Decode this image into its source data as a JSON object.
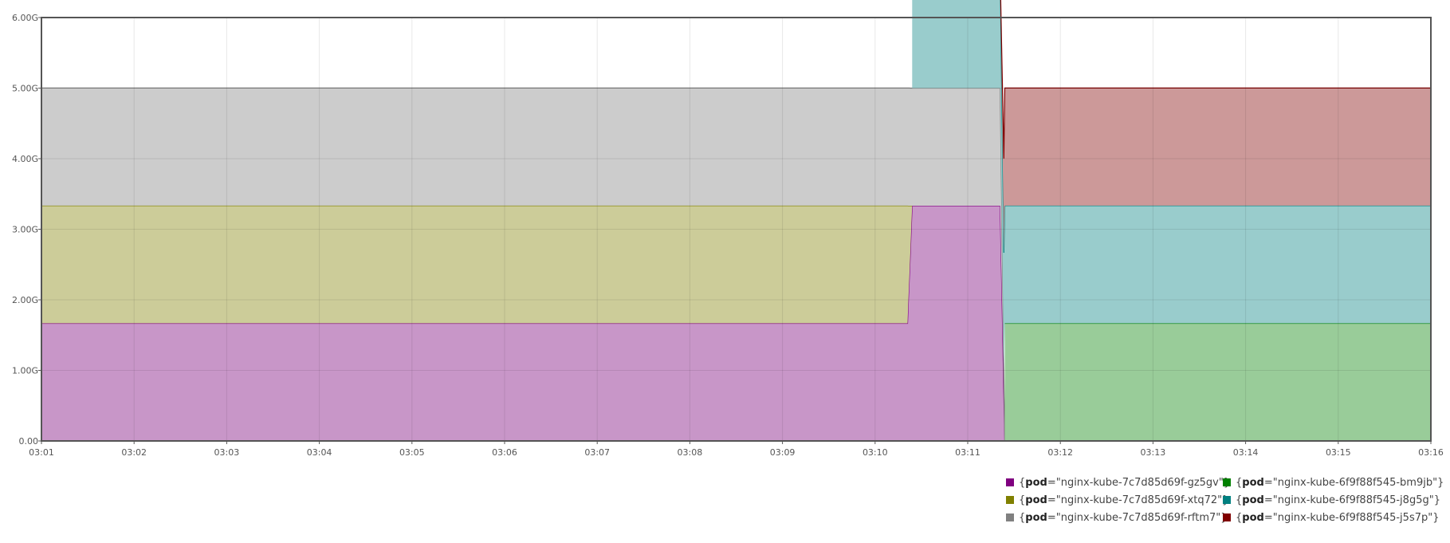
{
  "chart_data": {
    "type": "area",
    "stacked": true,
    "title": "",
    "xlabel": "",
    "ylabel": "",
    "x_ticks": [
      "03:01",
      "03:02",
      "03:03",
      "03:04",
      "03:05",
      "03:06",
      "03:07",
      "03:08",
      "03:09",
      "03:10",
      "03:11",
      "03:12",
      "03:13",
      "03:14",
      "03:15",
      "03:16"
    ],
    "x_range_minutes": [
      0,
      15
    ],
    "ylim": [
      0,
      6
    ],
    "y_ticks": [
      "0.00",
      "1.00G",
      "2.00G",
      "3.00G",
      "4.00G",
      "5.00G",
      "6.00G"
    ],
    "grid": true,
    "legend_position": "bottom-right",
    "series": [
      {
        "key": "pod",
        "value": "nginx-kube-7c7d85d69f-gz5gv",
        "color": "#800080",
        "fill": "#c896c8",
        "points": [
          [
            0,
            1.667
          ],
          [
            9.35,
            1.667
          ],
          [
            9.4,
            3.333
          ],
          [
            10.35,
            3.333
          ],
          [
            10.4,
            0
          ]
        ]
      },
      {
        "key": "pod",
        "value": "nginx-kube-7c7d85d69f-xtq72",
        "color": "#808000",
        "fill": "#cccc99",
        "points": [
          [
            0,
            1.667
          ],
          [
            9.35,
            1.667
          ],
          [
            9.4,
            0
          ]
        ]
      },
      {
        "key": "pod",
        "value": "nginx-kube-7c7d85d69f-rftm7",
        "color": "#808080",
        "fill": "#cccccc",
        "points": [
          [
            0,
            1.667
          ],
          [
            10.35,
            1.667
          ],
          [
            10.4,
            0
          ]
        ]
      },
      {
        "key": "pod",
        "value": "nginx-kube-6f9f88f545-bm9jb",
        "color": "#008000",
        "fill": "#99cc99",
        "points": [
          [
            10.4,
            0
          ],
          [
            10.4,
            1.667
          ],
          [
            15,
            1.667
          ]
        ]
      },
      {
        "key": "pod",
        "value": "nginx-kube-6f9f88f545-j8g5g",
        "color": "#008080",
        "fill": "#99cccc",
        "points": [
          [
            9.4,
            0
          ],
          [
            9.4,
            1.667
          ],
          [
            10.35,
            1.667
          ],
          [
            10.4,
            1.667
          ],
          [
            15,
            1.667
          ]
        ]
      },
      {
        "key": "pod",
        "value": "nginx-kube-6f9f88f545-j5s7p",
        "color": "#800000",
        "fill": "#cc9999",
        "points": [
          [
            10.35,
            0
          ],
          [
            10.4,
            1.667
          ],
          [
            15,
            1.667
          ]
        ]
      }
    ]
  },
  "legend": {
    "items": [
      {
        "key": "pod",
        "value": "nginx-kube-7c7d85d69f-gz5gv",
        "color": "#800080"
      },
      {
        "key": "pod",
        "value": "nginx-kube-6f9f88f545-bm9jb",
        "color": "#008000"
      },
      {
        "key": "pod",
        "value": "nginx-kube-7c7d85d69f-xtq72",
        "color": "#808000"
      },
      {
        "key": "pod",
        "value": "nginx-kube-6f9f88f545-j8g5g",
        "color": "#008080"
      },
      {
        "key": "pod",
        "value": "nginx-kube-7c7d85d69f-rftm7",
        "color": "#808080"
      },
      {
        "key": "pod",
        "value": "nginx-kube-6f9f88f545-j5s7p",
        "color": "#800000"
      }
    ]
  }
}
